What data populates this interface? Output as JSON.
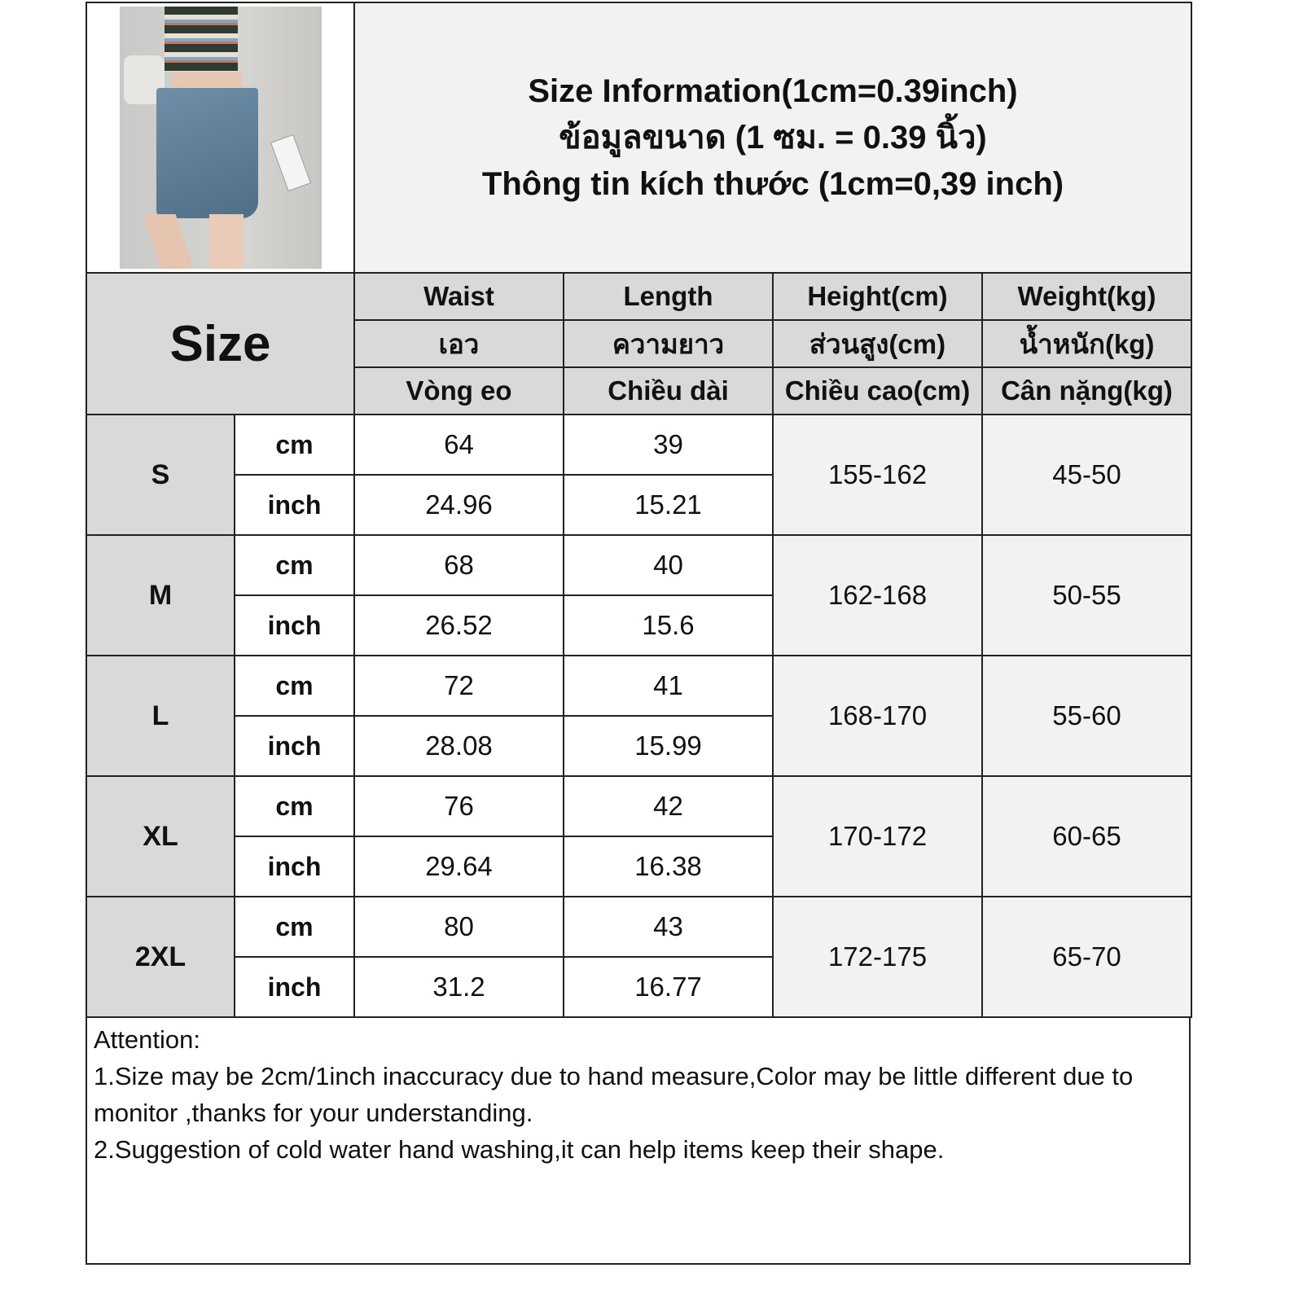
{
  "title_lines": [
    "Size Information(1cm=0.39inch)",
    "ข้อมูลขนาด (1 ซม. = 0.39 นิ้ว)",
    "Thông tin kích thước (1cm=0,39 inch)"
  ],
  "size_label": "Size",
  "columns": [
    {
      "en": "Waist",
      "th": "เอว",
      "vi": "Vòng eo"
    },
    {
      "en": "Length",
      "th": "ความยาว",
      "vi": "Chiều dài"
    },
    {
      "en": "Height(cm)",
      "th": "ส่วนสูง(cm)",
      "vi": "Chiều cao(cm)"
    },
    {
      "en": "Weight(kg)",
      "th": "น้ำหนัก(kg)",
      "vi": "Cân nặng(kg)"
    }
  ],
  "units": {
    "cm": "cm",
    "inch": "inch"
  },
  "rows": [
    {
      "size": "S",
      "waist_cm": "64",
      "length_cm": "39",
      "waist_in": "24.96",
      "length_in": "15.21",
      "height": "155-162",
      "weight": "45-50"
    },
    {
      "size": "M",
      "waist_cm": "68",
      "length_cm": "40",
      "waist_in": "26.52",
      "length_in": "15.6",
      "height": "162-168",
      "weight": "50-55"
    },
    {
      "size": "L",
      "waist_cm": "72",
      "length_cm": "41",
      "waist_in": "28.08",
      "length_in": "15.99",
      "height": "168-170",
      "weight": "55-60"
    },
    {
      "size": "XL",
      "waist_cm": "76",
      "length_cm": "42",
      "waist_in": "29.64",
      "length_in": "16.38",
      "height": "170-172",
      "weight": "60-65"
    },
    {
      "size": "2XL",
      "waist_cm": "80",
      "length_cm": "43",
      "waist_in": "31.2",
      "length_in": "16.77",
      "height": "172-175",
      "weight": "65-70"
    }
  ],
  "attention": {
    "heading": "Attention:",
    "notes": [
      "1.Size may be 2cm/1inch inaccuracy due to hand measure,Color may be little different due to monitor ,thanks for your understanding.",
      "2.Suggestion of cold water hand washing,it can help items keep their shape."
    ]
  },
  "colors": {
    "header_gray": "#d9d9d9",
    "merged_gray": "#f2f2f2",
    "border": "#222222"
  }
}
